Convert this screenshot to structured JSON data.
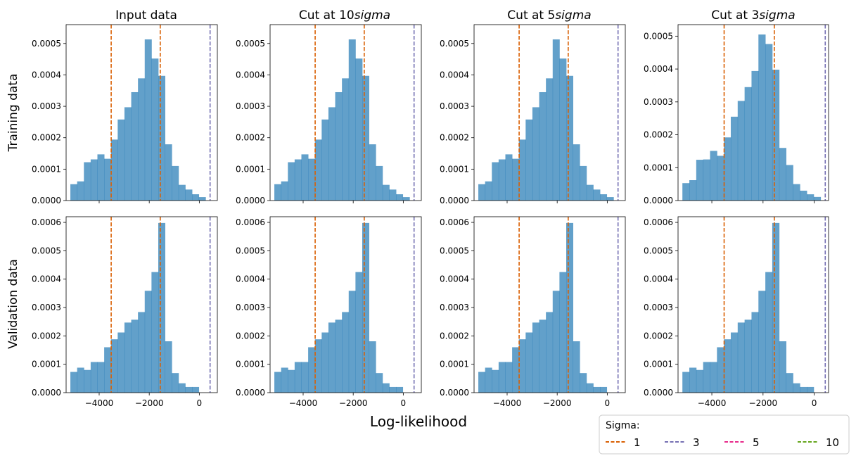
{
  "figure": {
    "xlabel": "Log-likelihood",
    "row_labels": [
      "Training data",
      "Validation data"
    ],
    "column_titles": [
      {
        "plain": "Input data",
        "italic": ""
      },
      {
        "plain": "Cut at 10",
        "italic": "sigma"
      },
      {
        "plain": "Cut at 5",
        "italic": "sigma"
      },
      {
        "plain": "Cut at 3",
        "italic": "sigma"
      }
    ],
    "legend": {
      "title": "Sigma:",
      "entries": [
        {
          "label": "1",
          "color": "#d95f02"
        },
        {
          "label": "3",
          "color": "#7570b3"
        },
        {
          "label": "5",
          "color": "#e7298a"
        },
        {
          "label": "10",
          "color": "#66a61e"
        }
      ]
    }
  },
  "chart_data": [
    {
      "type": "bar",
      "panel": "training",
      "column": 0,
      "bin_edges": [
        -5150,
        -4880,
        -4610,
        -4340,
        -4070,
        -3800,
        -3530,
        -3260,
        -2990,
        -2720,
        -2450,
        -2180,
        -1910,
        -1640,
        -1370,
        -1100,
        -830,
        -560,
        -290,
        -20,
        250
      ],
      "values": [
        5.2e-05,
        6.1e-05,
        0.000122,
        0.000131,
        0.000147,
        0.000133,
        0.000194,
        0.000258,
        0.000297,
        0.000345,
        0.000389,
        0.000513,
        0.000452,
        0.000397,
        0.000179,
        0.00011,
        5e-05,
        3.5e-05,
        2e-05,
        1.1e-05,
        1e-06
      ],
      "vlines": [
        {
          "x": -3520,
          "series": "1"
        },
        {
          "x": -1560,
          "series": "1"
        },
        {
          "x": 430,
          "series": "3"
        }
      ],
      "ylim": [
        0,
        0.00056
      ],
      "yticks": [
        "0.0000",
        "0.0001",
        "0.0002",
        "0.0003",
        "0.0004",
        "0.0005"
      ],
      "xlim": [
        -5320,
        720
      ],
      "xticks": [
        "−4000",
        "−2000",
        "0"
      ],
      "show_xticklabels": false
    },
    {
      "type": "bar",
      "panel": "training",
      "column": 1,
      "bin_edges": [
        -5150,
        -4880,
        -4610,
        -4340,
        -4070,
        -3800,
        -3530,
        -3260,
        -2990,
        -2720,
        -2450,
        -2180,
        -1910,
        -1640,
        -1370,
        -1100,
        -830,
        -560,
        -290,
        -20,
        250
      ],
      "values": [
        5.2e-05,
        6.1e-05,
        0.000122,
        0.000131,
        0.000147,
        0.000133,
        0.000194,
        0.000258,
        0.000297,
        0.000345,
        0.000389,
        0.000513,
        0.000452,
        0.000397,
        0.000179,
        0.00011,
        5e-05,
        3.5e-05,
        2e-05,
        1.1e-05,
        1e-06
      ],
      "vlines": [
        {
          "x": -3520,
          "series": "1"
        },
        {
          "x": -1560,
          "series": "1"
        },
        {
          "x": 430,
          "series": "3"
        }
      ],
      "ylim": [
        0,
        0.00056
      ],
      "yticks": [
        "0.0000",
        "0.0001",
        "0.0002",
        "0.0003",
        "0.0004",
        "0.0005"
      ],
      "xlim": [
        -5320,
        720
      ],
      "xticks": [
        "−4000",
        "−2000",
        "0"
      ],
      "show_xticklabels": false
    },
    {
      "type": "bar",
      "panel": "training",
      "column": 2,
      "bin_edges": [
        -5150,
        -4880,
        -4610,
        -4340,
        -4070,
        -3800,
        -3530,
        -3260,
        -2990,
        -2720,
        -2450,
        -2180,
        -1910,
        -1640,
        -1370,
        -1100,
        -830,
        -560,
        -290,
        -20,
        250
      ],
      "values": [
        5.2e-05,
        6.1e-05,
        0.000122,
        0.000131,
        0.000147,
        0.000133,
        0.000194,
        0.000258,
        0.000297,
        0.000345,
        0.000389,
        0.000513,
        0.000452,
        0.000397,
        0.000179,
        0.00011,
        5e-05,
        3.5e-05,
        2e-05,
        1.1e-05,
        1e-06
      ],
      "vlines": [
        {
          "x": -3520,
          "series": "1"
        },
        {
          "x": -1560,
          "series": "1"
        },
        {
          "x": 430,
          "series": "3"
        }
      ],
      "ylim": [
        0,
        0.00056
      ],
      "yticks": [
        "0.0000",
        "0.0001",
        "0.0002",
        "0.0003",
        "0.0004",
        "0.0005"
      ],
      "xlim": [
        -5320,
        720
      ],
      "xticks": [
        "−4000",
        "−2000",
        "0"
      ],
      "show_xticklabels": false
    },
    {
      "type": "bar",
      "panel": "training",
      "column": 3,
      "bin_edges": [
        -5150,
        -4880,
        -4610,
        -4340,
        -4070,
        -3800,
        -3530,
        -3260,
        -2990,
        -2720,
        -2450,
        -2180,
        -1910,
        -1640,
        -1370,
        -1100,
        -830,
        -560,
        -290,
        -20,
        250
      ],
      "values": [
        5.3e-05,
        6.2e-05,
        0.000124,
        0.000125,
        0.000151,
        0.000136,
        0.000192,
        0.000255,
        0.000303,
        0.000345,
        0.000394,
        0.000505,
        0.000476,
        0.000398,
        0.00016,
        0.000108,
        5e-05,
        3e-05,
        1.9e-05,
        1.1e-05,
        1e-06
      ],
      "vlines": [
        {
          "x": -3520,
          "series": "1"
        },
        {
          "x": -1560,
          "series": "1"
        },
        {
          "x": 430,
          "series": "3"
        }
      ],
      "ylim": [
        0,
        0.000535
      ],
      "yticks": [
        "0.0000",
        "0.0001",
        "0.0002",
        "0.0003",
        "0.0004",
        "0.0005"
      ],
      "xlim": [
        -5320,
        560
      ],
      "xticks": [
        "−4000",
        "−2000",
        "0"
      ],
      "show_xticklabels": false
    },
    {
      "type": "bar",
      "panel": "validation",
      "column": 0,
      "bin_edges": [
        -5150,
        -4880,
        -4610,
        -4340,
        -4070,
        -3800,
        -3530,
        -3260,
        -2990,
        -2720,
        -2450,
        -2180,
        -1910,
        -1640,
        -1370,
        -1100,
        -830,
        -560,
        -290,
        -20
      ],
      "values": [
        7.3e-05,
        8.8e-05,
        8e-05,
        0.000108,
        0.000108,
        0.00016,
        0.000188,
        0.000212,
        0.000247,
        0.000257,
        0.000284,
        0.000359,
        0.000425,
        0.000598,
        0.000181,
        6.9e-05,
        3.3e-05,
        2e-05,
        2e-05,
        1.3e-05
      ],
      "vlines": [
        {
          "x": -3520,
          "series": "1"
        },
        {
          "x": -1560,
          "series": "1"
        },
        {
          "x": 430,
          "series": "3"
        }
      ],
      "ylim": [
        0,
        0.00062
      ],
      "yticks": [
        "0.0000",
        "0.0001",
        "0.0002",
        "0.0003",
        "0.0004",
        "0.0005",
        "0.0006"
      ],
      "xlim": [
        -5320,
        720
      ],
      "xticks": [
        "−4000",
        "−2000",
        "0"
      ],
      "show_xticklabels": true
    },
    {
      "type": "bar",
      "panel": "validation",
      "column": 1,
      "bin_edges": [
        -5150,
        -4880,
        -4610,
        -4340,
        -4070,
        -3800,
        -3530,
        -3260,
        -2990,
        -2720,
        -2450,
        -2180,
        -1910,
        -1640,
        -1370,
        -1100,
        -830,
        -560,
        -290,
        -20
      ],
      "values": [
        7.3e-05,
        8.8e-05,
        8e-05,
        0.000108,
        0.000108,
        0.00016,
        0.000188,
        0.000212,
        0.000247,
        0.000257,
        0.000284,
        0.000359,
        0.000425,
        0.000598,
        0.000181,
        6.9e-05,
        3.3e-05,
        2e-05,
        2e-05,
        1.3e-05
      ],
      "vlines": [
        {
          "x": -3520,
          "series": "1"
        },
        {
          "x": -1560,
          "series": "1"
        },
        {
          "x": 430,
          "series": "3"
        }
      ],
      "ylim": [
        0,
        0.00062
      ],
      "yticks": [
        "0.0000",
        "0.0001",
        "0.0002",
        "0.0003",
        "0.0004",
        "0.0005",
        "0.0006"
      ],
      "xlim": [
        -5320,
        720
      ],
      "xticks": [
        "−4000",
        "−2000",
        "0"
      ],
      "show_xticklabels": true
    },
    {
      "type": "bar",
      "panel": "validation",
      "column": 2,
      "bin_edges": [
        -5150,
        -4880,
        -4610,
        -4340,
        -4070,
        -3800,
        -3530,
        -3260,
        -2990,
        -2720,
        -2450,
        -2180,
        -1910,
        -1640,
        -1370,
        -1100,
        -830,
        -560,
        -290,
        -20
      ],
      "values": [
        7.3e-05,
        8.8e-05,
        8e-05,
        0.000108,
        0.000108,
        0.00016,
        0.000188,
        0.000212,
        0.000247,
        0.000257,
        0.000284,
        0.000359,
        0.000425,
        0.000598,
        0.000181,
        6.9e-05,
        3.3e-05,
        2e-05,
        2e-05,
        1.3e-05
      ],
      "vlines": [
        {
          "x": -3520,
          "series": "1"
        },
        {
          "x": -1560,
          "series": "1"
        },
        {
          "x": 430,
          "series": "3"
        }
      ],
      "ylim": [
        0,
        0.00062
      ],
      "yticks": [
        "0.0000",
        "0.0001",
        "0.0002",
        "0.0003",
        "0.0004",
        "0.0005",
        "0.0006"
      ],
      "xlim": [
        -5320,
        720
      ],
      "xticks": [
        "−4000",
        "−2000",
        "0"
      ],
      "show_xticklabels": true
    },
    {
      "type": "bar",
      "panel": "validation",
      "column": 3,
      "bin_edges": [
        -5150,
        -4880,
        -4610,
        -4340,
        -4070,
        -3800,
        -3530,
        -3260,
        -2990,
        -2720,
        -2450,
        -2180,
        -1910,
        -1640,
        -1370,
        -1100,
        -830,
        -560,
        -290,
        -20
      ],
      "values": [
        7.3e-05,
        8.8e-05,
        8e-05,
        0.000108,
        0.000108,
        0.00016,
        0.000188,
        0.000212,
        0.000247,
        0.000257,
        0.000284,
        0.000359,
        0.000425,
        0.000598,
        0.000181,
        6.9e-05,
        3.3e-05,
        2e-05,
        2e-05,
        1.3e-05
      ],
      "vlines": [
        {
          "x": -3520,
          "series": "1"
        },
        {
          "x": -1560,
          "series": "1"
        },
        {
          "x": 430,
          "series": "3"
        }
      ],
      "ylim": [
        0,
        0.00062
      ],
      "yticks": [
        "0.0000",
        "0.0001",
        "0.0002",
        "0.0003",
        "0.0004",
        "0.0005",
        "0.0006"
      ],
      "xlim": [
        -5320,
        560
      ],
      "xticks": [
        "−4000",
        "−2000",
        "0"
      ],
      "show_xticklabels": true
    }
  ]
}
